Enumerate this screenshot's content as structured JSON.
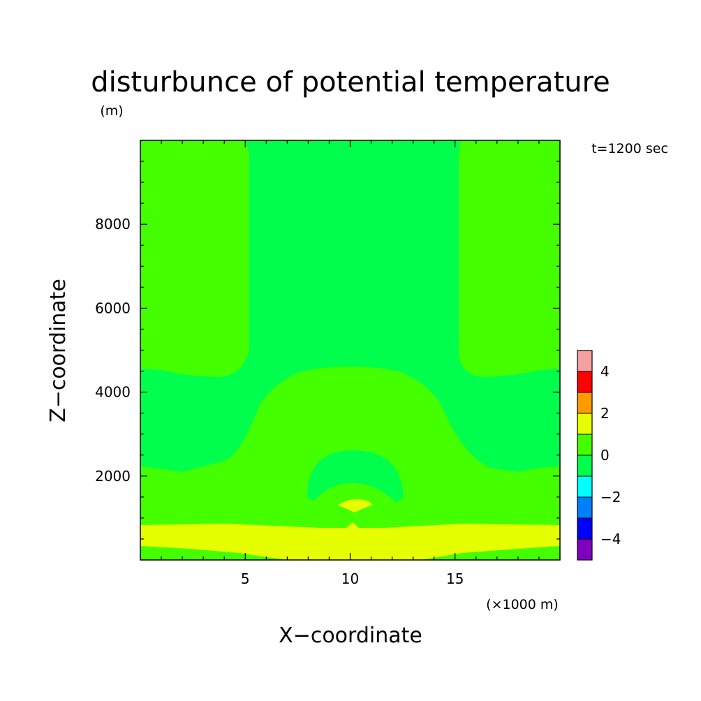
{
  "chart_data": {
    "type": "heatmap",
    "title": "disturbunce of potential temperature",
    "units_label": "(m)",
    "time_label": "t=1200 sec",
    "xlabel": "X−coordinate",
    "ylabel": "Z−coordinate",
    "x_unit_label": "(×1000 m)",
    "xlim": [
      0,
      20
    ],
    "ylim": [
      0,
      10000
    ],
    "xticks": [
      5,
      10,
      15
    ],
    "xtick_labels": [
      "5",
      "10",
      "15"
    ],
    "yticks": [
      2000,
      4000,
      6000,
      8000
    ],
    "ytick_labels": [
      "2000",
      "4000",
      "6000",
      "8000"
    ],
    "levels": [
      -5,
      -4,
      -3,
      -2,
      -1,
      0,
      1,
      2,
      3,
      4,
      5
    ],
    "colorbar": {
      "colors": [
        "#7f00bf",
        "#0000ff",
        "#0080ff",
        "#00ffff",
        "#00ff4c",
        "#44ff00",
        "#e6ff00",
        "#ff9a00",
        "#ff0000",
        "#f5a0a0"
      ],
      "tick_values": [
        -4,
        -2,
        0,
        2,
        4
      ],
      "tick_labels": [
        "−4",
        "−2",
        "0",
        "2",
        "4"
      ]
    },
    "region_levels": {
      "background": 0.5,
      "upper_plume": -0.5,
      "mid_band": -0.5,
      "lower_dome": 0.5,
      "arc": -0.5,
      "arc_inner": 0.5,
      "small_warm_blob": 1.5,
      "surface_warm_band": 1.5,
      "surface_cool_layer": 0.5
    }
  }
}
